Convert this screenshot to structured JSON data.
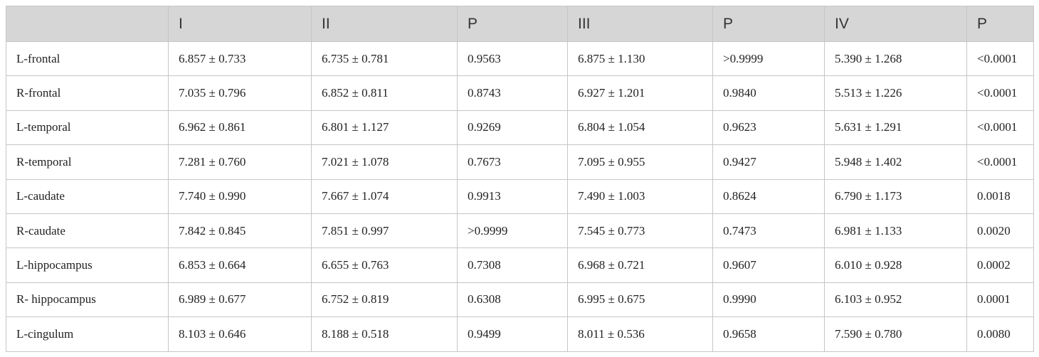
{
  "table": {
    "header": [
      "I",
      "II",
      "P",
      "III",
      "P",
      "IV",
      "P"
    ],
    "rows": [
      [
        "L-frontal",
        "6.857 ± 0.733",
        "6.735 ± 0.781",
        "0.9563",
        "6.875 ± 1.130",
        ">0.9999",
        "5.390 ± 1.268",
        "<0.0001"
      ],
      [
        "R-frontal",
        "7.035 ± 0.796",
        "6.852 ± 0.811",
        "0.8743",
        "6.927 ± 1.201",
        "0.9840",
        "5.513 ± 1.226",
        "<0.0001"
      ],
      [
        "L-temporal",
        "6.962 ± 0.861",
        "6.801 ± 1.127",
        "0.9269",
        "6.804 ± 1.054",
        "0.9623",
        "5.631 ± 1.291",
        "<0.0001"
      ],
      [
        "R-temporal",
        "7.281 ± 0.760",
        "7.021 ± 1.078",
        "0.7673",
        "7.095 ± 0.955",
        "0.9427",
        "5.948 ± 1.402",
        "<0.0001"
      ],
      [
        "L-caudate",
        "7.740 ± 0.990",
        "7.667 ± 1.074",
        "0.9913",
        "7.490 ± 1.003",
        "0.8624",
        "6.790 ± 1.173",
        "0.0018"
      ],
      [
        "R-caudate",
        "7.842 ± 0.845",
        "7.851 ± 0.997",
        ">0.9999",
        "7.545 ± 0.773",
        "0.7473",
        "6.981 ± 1.133",
        "0.0020"
      ],
      [
        "L-hippocampus",
        "6.853 ± 0.664",
        "6.655 ± 0.763",
        "0.7308",
        "6.968 ± 0.721",
        "0.9607",
        "6.010 ± 0.928",
        "0.0002"
      ],
      [
        "R- hippocampus",
        "6.989 ± 0.677",
        "6.752 ± 0.819",
        "0.6308",
        "6.995 ± 0.675",
        "0.9990",
        "6.103 ± 0.952",
        "0.0001"
      ],
      [
        "L-cingulum",
        "8.103 ± 0.646",
        "8.188 ± 0.518",
        "0.9499",
        "8.011 ± 0.536",
        "0.9658",
        "7.590 ± 0.780",
        "0.0080"
      ]
    ]
  }
}
